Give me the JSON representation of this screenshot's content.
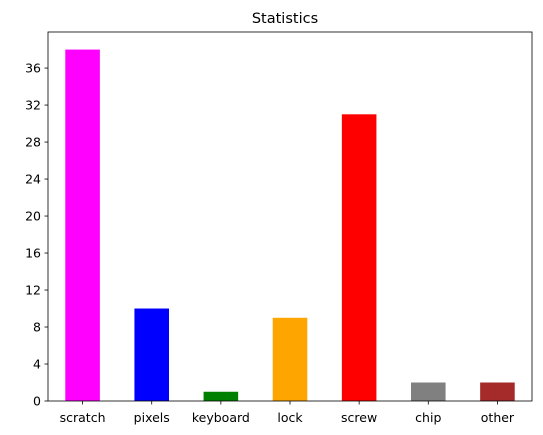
{
  "chart_data": {
    "type": "bar",
    "title": "Statistics",
    "xlabel": "",
    "ylabel": "",
    "categories": [
      "scratch",
      "pixels",
      "keyboard",
      "lock",
      "screw",
      "chip",
      "other"
    ],
    "values": [
      38,
      10,
      1,
      9,
      31,
      2,
      2
    ],
    "colors": [
      "#ff00ff",
      "#0000ff",
      "#008000",
      "#ffa500",
      "#ff0000",
      "#808080",
      "#a52a2a"
    ],
    "ylim": [
      0,
      39.9
    ],
    "yticks": [
      0,
      4,
      8,
      12,
      16,
      20,
      24,
      28,
      32,
      36
    ],
    "grid": false,
    "legend": "none"
  }
}
